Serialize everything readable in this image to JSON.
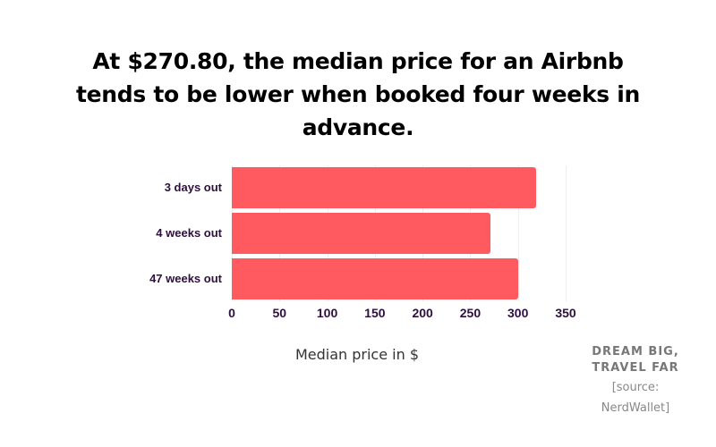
{
  "title": "At $270.80, the median price for an Airbnb tends to be lower when booked four weeks in advance.",
  "chart_data": {
    "type": "bar",
    "orientation": "horizontal",
    "title": "At $270.80, the median price for an Airbnb tends to be lower when booked four weeks in advance.",
    "categories": [
      "3 days out",
      "4 weeks out",
      "47 weeks out"
    ],
    "values": [
      319,
      270.8,
      300
    ],
    "xlabel": "Median price in $",
    "ylabel": "",
    "xlim": [
      0,
      350
    ],
    "xticks": [
      0,
      50,
      100,
      150,
      200,
      250,
      300,
      350
    ],
    "grid": true,
    "legend": null,
    "bar_color": "#ff5a5f"
  },
  "axis": {
    "ticks": [
      "0",
      "50",
      "100",
      "150",
      "200",
      "250",
      "300",
      "350"
    ],
    "xlabel": "Median price in $"
  },
  "branding": {
    "line1": "DREAM BIG,",
    "line2": "TRAVEL FAR",
    "source1": "[source:",
    "source2": "NerdWallet]"
  }
}
